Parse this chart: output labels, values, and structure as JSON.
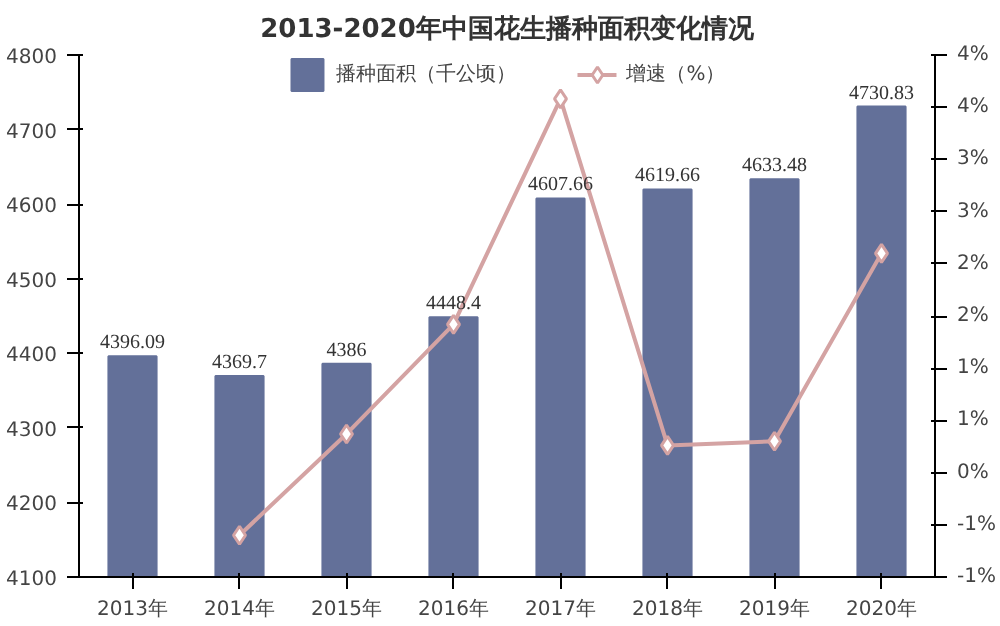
{
  "chart_data": {
    "type": "bar",
    "title": "2013-2020年中国花生播种面积变化情况",
    "categories": [
      "2013年",
      "2014年",
      "2015年",
      "2016年",
      "2017年",
      "2018年",
      "2019年",
      "2020年"
    ],
    "series": [
      {
        "name": "播种面积（千公顷）",
        "color": "#637099",
        "values": [
          4396.09,
          4369.7,
          4386,
          4448.4,
          4607.66,
          4619.66,
          4633.48,
          4730.83
        ],
        "value_labels": [
          "4396.09",
          "4369.7",
          "4386",
          "4448.4",
          "4607.66",
          "4619.66",
          "4633.48",
          "4730.83"
        ]
      },
      {
        "name": "增速（%）",
        "type": "line",
        "axis": "y2",
        "color": "#d4a3a3",
        "marker": "diamond",
        "values": [
          null,
          -0.6,
          0.37,
          1.42,
          3.58,
          0.26,
          0.3,
          2.1
        ]
      }
    ],
    "ylim": [
      4100,
      4800
    ],
    "yticks": [
      4100,
      4200,
      4300,
      4400,
      4500,
      4600,
      4700,
      4800
    ],
    "y2lim": [
      -1,
      4
    ],
    "y2ticks": [
      {
        "value": -1,
        "label": "-1%"
      },
      {
        "value": -0.5,
        "label": "-1%"
      },
      {
        "value": 0,
        "label": "0%"
      },
      {
        "value": 0.5,
        "label": "1%"
      },
      {
        "value": 1,
        "label": "1%"
      },
      {
        "value": 1.5,
        "label": "2%"
      },
      {
        "value": 2,
        "label": "2%"
      },
      {
        "value": 2.5,
        "label": "3%"
      },
      {
        "value": 3,
        "label": "3%"
      },
      {
        "value": 3.5,
        "label": "4%"
      },
      {
        "value": 4,
        "label": "4%"
      }
    ],
    "legend": "top",
    "grid": false
  }
}
